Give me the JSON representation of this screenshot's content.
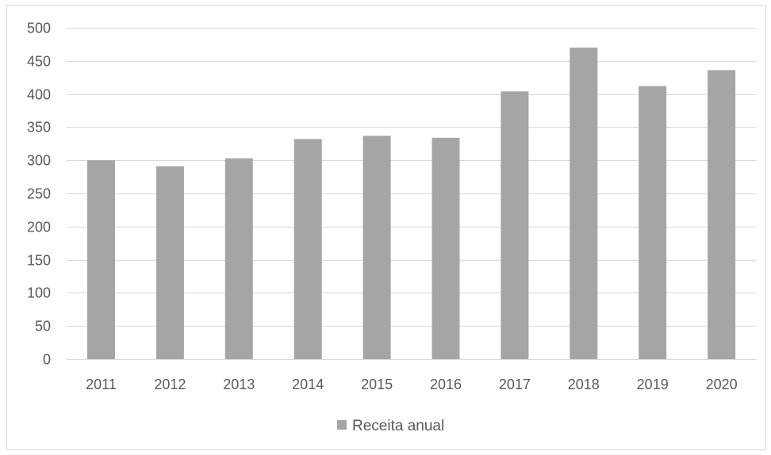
{
  "chart_data": {
    "type": "bar",
    "title": "",
    "xlabel": "",
    "ylabel": "",
    "categories": [
      "2011",
      "2012",
      "2013",
      "2014",
      "2015",
      "2016",
      "2017",
      "2018",
      "2019",
      "2020"
    ],
    "series": [
      {
        "name": "Receita anual",
        "values": [
          300,
          291,
          303,
          332,
          337,
          334,
          404,
          470,
          412,
          436
        ],
        "color": "#a5a5a5"
      }
    ],
    "ylim": [
      0,
      500
    ],
    "yticks": [
      "0",
      "50",
      "100",
      "150",
      "200",
      "250",
      "300",
      "350",
      "400",
      "450",
      "500"
    ],
    "grid": true,
    "gridColor": "#d9d9d9",
    "legend": {
      "position": "bottom",
      "label": "Receita anual"
    }
  }
}
